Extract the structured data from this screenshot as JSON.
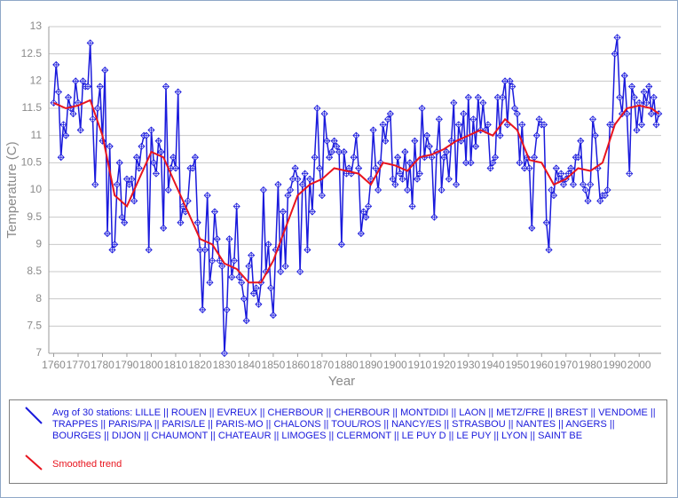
{
  "chart_data": {
    "type": "line",
    "ylabel": "Temperature (C)",
    "xlabel": "Year",
    "xlim": [
      1758,
      2009
    ],
    "ylim": [
      7,
      13
    ],
    "xticks": [
      1760,
      1770,
      1780,
      1790,
      1800,
      1810,
      1820,
      1830,
      1840,
      1850,
      1860,
      1870,
      1880,
      1890,
      1900,
      1910,
      1920,
      1930,
      1940,
      1950,
      1960,
      1970,
      1980,
      1990,
      2000
    ],
    "yticks": [
      7,
      7.5,
      8,
      8.5,
      9,
      9.5,
      10,
      10.5,
      11,
      11.5,
      12,
      12.5,
      13
    ],
    "grid": true,
    "series": [
      {
        "name": "Avg of 30 stations: LILLE || ROUEN || EVREUX || CHERBOUR || CHERBOUR || MONTDIDI || LAON || METZ/FRE || BREST || VENDOME || TRAPPES || PARIS/PA || PARIS/LE || PARIS-MO || CHALONS || TOUL/ROS || NANCY/ES || STRASBOU || NANTES || ANGERS || BOURGES || DIJON || CHAUMONT || CHATEAUR || LIMOGES || CLERMONT || LE PUY D || LE PUY || LYON || SAINT BE",
        "color": "#1a1adc",
        "markers": true,
        "x": [
          1760,
          1761,
          1762,
          1763,
          1764,
          1765,
          1766,
          1767,
          1768,
          1769,
          1770,
          1771,
          1772,
          1773,
          1774,
          1775,
          1776,
          1777,
          1778,
          1779,
          1780,
          1781,
          1782,
          1783,
          1784,
          1785,
          1786,
          1787,
          1788,
          1789,
          1790,
          1791,
          1792,
          1793,
          1794,
          1795,
          1796,
          1797,
          1798,
          1799,
          1800,
          1801,
          1802,
          1803,
          1804,
          1805,
          1806,
          1807,
          1808,
          1809,
          1810,
          1811,
          1812,
          1813,
          1814,
          1815,
          1816,
          1817,
          1818,
          1819,
          1820,
          1821,
          1822,
          1823,
          1824,
          1825,
          1826,
          1827,
          1828,
          1829,
          1830,
          1831,
          1832,
          1833,
          1834,
          1835,
          1836,
          1837,
          1838,
          1839,
          1840,
          1841,
          1842,
          1843,
          1844,
          1845,
          1846,
          1847,
          1848,
          1849,
          1850,
          1851,
          1852,
          1853,
          1854,
          1855,
          1856,
          1857,
          1858,
          1859,
          1860,
          1861,
          1862,
          1863,
          1864,
          1865,
          1866,
          1867,
          1868,
          1869,
          1870,
          1871,
          1872,
          1873,
          1874,
          1875,
          1876,
          1877,
          1878,
          1879,
          1880,
          1881,
          1882,
          1883,
          1884,
          1885,
          1886,
          1887,
          1888,
          1889,
          1890,
          1891,
          1892,
          1893,
          1894,
          1895,
          1896,
          1897,
          1898,
          1899,
          1900,
          1901,
          1902,
          1903,
          1904,
          1905,
          1906,
          1907,
          1908,
          1909,
          1910,
          1911,
          1912,
          1913,
          1914,
          1915,
          1916,
          1917,
          1918,
          1919,
          1920,
          1921,
          1922,
          1923,
          1924,
          1925,
          1926,
          1927,
          1928,
          1929,
          1930,
          1931,
          1932,
          1933,
          1934,
          1935,
          1936,
          1937,
          1938,
          1939,
          1940,
          1941,
          1942,
          1943,
          1944,
          1945,
          1946,
          1947,
          1948,
          1949,
          1950,
          1951,
          1952,
          1953,
          1954,
          1955,
          1956,
          1957,
          1958,
          1959,
          1960,
          1961,
          1962,
          1963,
          1964,
          1965,
          1966,
          1967,
          1968,
          1969,
          1970,
          1971,
          1972,
          1973,
          1974,
          1975,
          1976,
          1977,
          1978,
          1979,
          1980,
          1981,
          1982,
          1983,
          1984,
          1985,
          1986,
          1987,
          1988,
          1989,
          1990,
          1991,
          1992,
          1993,
          1994,
          1995,
          1996,
          1997,
          1998,
          1999,
          2000,
          2001,
          2002,
          2003,
          2004,
          2005,
          2006,
          2007,
          2008
        ],
        "values": [
          11.6,
          12.3,
          11.8,
          10.6,
          11.2,
          11.0,
          11.7,
          11.5,
          11.4,
          12.0,
          11.6,
          11.1,
          12.0,
          11.9,
          11.9,
          12.7,
          11.3,
          10.1,
          11.5,
          11.9,
          10.9,
          12.2,
          9.2,
          10.8,
          8.9,
          9.0,
          10.1,
          10.5,
          9.5,
          9.4,
          10.2,
          10.1,
          10.2,
          9.8,
          10.6,
          10.4,
          10.8,
          11.0,
          11.0,
          8.9,
          11.1,
          10.5,
          10.3,
          10.9,
          10.7,
          9.3,
          11.9,
          10.0,
          10.4,
          10.6,
          10.4,
          11.8,
          9.4,
          9.7,
          9.6,
          9.8,
          10.4,
          10.4,
          10.6,
          9.4,
          8.9,
          7.8,
          8.9,
          9.9,
          8.3,
          8.7,
          9.6,
          9.1,
          8.7,
          8.6,
          7.0,
          7.8,
          9.1,
          8.4,
          8.7,
          9.7,
          8.4,
          8.3,
          8.0,
          7.6,
          8.6,
          8.8,
          8.1,
          8.2,
          7.9,
          8.3,
          10.0,
          8.5,
          9.0,
          8.2,
          7.7,
          8.9,
          10.1,
          8.5,
          9.6,
          8.6,
          9.9,
          10.0,
          10.2,
          10.4,
          10.2,
          8.5,
          10.1,
          10.3,
          8.9,
          10.2,
          9.6,
          10.6,
          11.5,
          10.4,
          9.9,
          11.4,
          10.9,
          10.6,
          10.7,
          10.9,
          10.8,
          10.7,
          9.0,
          10.7,
          10.3,
          10.4,
          10.3,
          10.6,
          11.0,
          10.4,
          9.2,
          9.6,
          9.5,
          9.7,
          10.2,
          11.1,
          10.4,
          10.0,
          10.5,
          11.2,
          10.9,
          11.3,
          11.4,
          10.2,
          10.1,
          10.6,
          10.3,
          10.2,
          10.7,
          10.0,
          10.5,
          9.7,
          10.9,
          10.2,
          10.3,
          11.5,
          10.6,
          11.0,
          10.8,
          10.6,
          9.5,
          10.7,
          11.3,
          10.0,
          10.6,
          10.7,
          10.2,
          10.9,
          11.6,
          10.1,
          11.2,
          10.9,
          11.4,
          10.5,
          11.7,
          10.5,
          11.3,
          10.8,
          11.7,
          11.1,
          11.6,
          11.1,
          11.2,
          10.4,
          10.5,
          10.6,
          11.7,
          11.0,
          11.7,
          12.0,
          11.2,
          12.0,
          11.9,
          11.5,
          11.4,
          10.5,
          11.2,
          10.4,
          10.6,
          10.4,
          9.3,
          10.6,
          11.0,
          11.3,
          11.2,
          11.2,
          9.4,
          8.9,
          10.0,
          9.9,
          10.4,
          10.2,
          10.3,
          10.1,
          10.2,
          10.3,
          10.4,
          10.1,
          10.6,
          10.6,
          10.9,
          10.1,
          10.0,
          9.8,
          10.1,
          11.3,
          11.0,
          10.4,
          9.8,
          9.9,
          9.9,
          10.0,
          11.2,
          11.2,
          12.5,
          12.8,
          11.7,
          11.4,
          12.1,
          11.4,
          10.3,
          11.9,
          11.7,
          11.1,
          11.6,
          11.2,
          11.8,
          11.6,
          11.9,
          11.4,
          11.7,
          11.2,
          11.4
        ]
      },
      {
        "name": "Smoothed trend",
        "color": "#e8141e",
        "markers": false,
        "x": [
          1760,
          1765,
          1770,
          1775,
          1780,
          1785,
          1790,
          1795,
          1800,
          1805,
          1810,
          1815,
          1820,
          1825,
          1830,
          1835,
          1840,
          1845,
          1850,
          1855,
          1860,
          1865,
          1870,
          1875,
          1880,
          1885,
          1890,
          1895,
          1900,
          1905,
          1910,
          1915,
          1920,
          1925,
          1930,
          1935,
          1940,
          1945,
          1950,
          1955,
          1960,
          1965,
          1970,
          1975,
          1980,
          1985,
          1990,
          1995,
          2000,
          2005,
          2008
        ],
        "values": [
          11.6,
          11.5,
          11.55,
          11.65,
          11.0,
          9.9,
          9.7,
          10.2,
          10.7,
          10.6,
          10.1,
          9.6,
          9.1,
          9.0,
          8.65,
          8.55,
          8.3,
          8.3,
          8.7,
          9.3,
          9.9,
          10.1,
          10.2,
          10.4,
          10.35,
          10.3,
          10.1,
          10.5,
          10.45,
          10.35,
          10.6,
          10.65,
          10.75,
          10.9,
          11.0,
          11.1,
          11.0,
          11.3,
          11.1,
          10.55,
          10.5,
          10.1,
          10.2,
          10.4,
          10.35,
          10.5,
          11.2,
          11.5,
          11.55,
          11.5,
          11.4
        ]
      }
    ]
  }
}
